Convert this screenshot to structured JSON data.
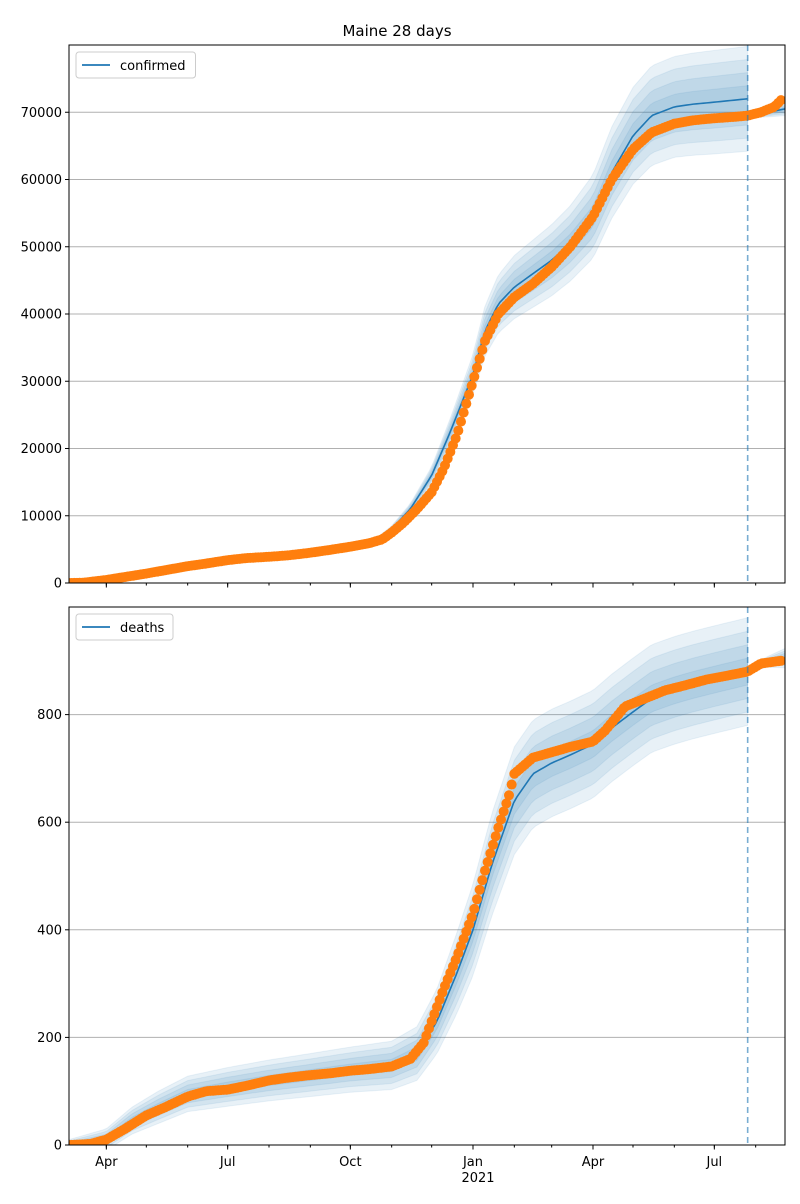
{
  "title": "Maine 28 days",
  "x_ticks": [
    {
      "label": "Apr",
      "date": "2020-04-01"
    },
    {
      "label": "Jul",
      "date": "2020-07-01"
    },
    {
      "label": "Oct",
      "date": "2020-10-01"
    },
    {
      "label": "Jan",
      "date": "2021-01-01"
    },
    {
      "label": "Apr",
      "date": "2021-04-01"
    },
    {
      "label": "Jul",
      "date": "2021-07-01"
    }
  ],
  "x_year_label": "2021",
  "colors": {
    "model": "#1f77b4",
    "observed": "#ff7f0e",
    "grid": "#b0b0b0"
  },
  "chart_data": [
    {
      "type": "line",
      "legend_label": "confirmed",
      "legend_position": "upper-left",
      "grid": true,
      "xlim": [
        "2020-03-04",
        "2021-08-23"
      ],
      "ylim": [
        0,
        80000
      ],
      "y_ticks": [
        0,
        10000,
        20000,
        30000,
        40000,
        50000,
        60000,
        70000
      ],
      "forecast_start": "2021-07-26",
      "model": {
        "x": [
          "2020-03-04",
          "2020-04-01",
          "2020-05-01",
          "2020-06-01",
          "2020-07-01",
          "2020-08-01",
          "2020-09-01",
          "2020-10-01",
          "2020-10-20",
          "2020-11-01",
          "2020-11-15",
          "2020-12-01",
          "2020-12-15",
          "2021-01-01",
          "2021-01-10",
          "2021-01-20",
          "2021-02-01",
          "2021-02-15",
          "2021-03-01",
          "2021-03-15",
          "2021-04-01",
          "2021-04-15",
          "2021-05-01",
          "2021-05-15",
          "2021-06-01",
          "2021-06-15",
          "2021-07-01",
          "2021-07-26"
        ],
        "mean": [
          0,
          400,
          1300,
          2500,
          3400,
          4000,
          4500,
          5400,
          6200,
          8000,
          11000,
          16000,
          22500,
          31000,
          37500,
          41500,
          44000,
          46000,
          48000,
          50500,
          54500,
          61000,
          66500,
          69500,
          70800,
          71200,
          71500,
          72000
        ],
        "band_spread": [
          0,
          50,
          100,
          150,
          200,
          250,
          300,
          350,
          400,
          500,
          800,
          1300,
          2000,
          3000,
          3700,
          4300,
          4700,
          5000,
          5300,
          5600,
          6200,
          6800,
          7200,
          7400,
          7500,
          7600,
          7700,
          7800
        ]
      },
      "model_tail": {
        "x": [
          "2021-07-26",
          "2021-08-10",
          "2021-08-23"
        ],
        "mean": [
          69500,
          70000,
          70500
        ],
        "band_spread": [
          300,
          700,
          1000
        ]
      },
      "observed": {
        "x": [
          "2020-03-04",
          "2020-03-15",
          "2020-04-01",
          "2020-04-15",
          "2020-05-01",
          "2020-05-15",
          "2020-06-01",
          "2020-06-15",
          "2020-07-01",
          "2020-07-15",
          "2020-08-01",
          "2020-08-15",
          "2020-09-01",
          "2020-09-15",
          "2020-10-01",
          "2020-10-15",
          "2020-10-25",
          "2020-11-01",
          "2020-11-10",
          "2020-11-20",
          "2020-12-01",
          "2020-12-10",
          "2020-12-20",
          "2021-01-01",
          "2021-01-10",
          "2021-01-20",
          "2021-02-01",
          "2021-02-15",
          "2021-03-01",
          "2021-03-15",
          "2021-04-01",
          "2021-04-15",
          "2021-05-01",
          "2021-05-15",
          "2021-06-01",
          "2021-06-15",
          "2021-07-01",
          "2021-07-15",
          "2021-07-26",
          "2021-08-05",
          "2021-08-15",
          "2021-08-20"
        ],
        "y": [
          0,
          50,
          450,
          900,
          1400,
          1900,
          2500,
          2900,
          3400,
          3700,
          3900,
          4100,
          4500,
          4900,
          5400,
          5900,
          6500,
          7500,
          9000,
          11000,
          13500,
          17000,
          22000,
          30000,
          36000,
          40000,
          42500,
          44500,
          47000,
          50000,
          54500,
          60000,
          64500,
          67000,
          68300,
          68800,
          69100,
          69300,
          69500,
          70000,
          70800,
          71800
        ]
      }
    },
    {
      "type": "line",
      "legend_label": "deaths",
      "legend_position": "upper-left",
      "grid": true,
      "xlim": [
        "2020-03-04",
        "2021-08-23"
      ],
      "ylim": [
        0,
        1000
      ],
      "y_ticks": [
        0,
        200,
        400,
        600,
        800
      ],
      "forecast_start": "2021-07-26",
      "model": {
        "x": [
          "2020-03-04",
          "2020-04-01",
          "2020-04-20",
          "2020-05-10",
          "2020-06-01",
          "2020-07-01",
          "2020-08-01",
          "2020-09-01",
          "2020-10-01",
          "2020-11-01",
          "2020-11-20",
          "2020-12-05",
          "2020-12-20",
          "2021-01-01",
          "2021-01-15",
          "2021-02-01",
          "2021-02-15",
          "2021-03-01",
          "2021-03-15",
          "2021-04-01",
          "2021-04-15",
          "2021-05-01",
          "2021-05-15",
          "2021-06-01",
          "2021-06-15",
          "2021-07-01",
          "2021-07-26"
        ],
        "mean": [
          0,
          10,
          45,
          70,
          95,
          108,
          120,
          130,
          140,
          148,
          170,
          230,
          320,
          400,
          520,
          640,
          690,
          710,
          725,
          745,
          775,
          805,
          830,
          845,
          855,
          865,
          880
        ],
        "band_spread": [
          10,
          20,
          25,
          30,
          33,
          36,
          38,
          40,
          42,
          45,
          50,
          60,
          75,
          85,
          95,
          100,
          100,
          100,
          100,
          100,
          100,
          100,
          100,
          100,
          100,
          100,
          100
        ]
      },
      "model_tail": {
        "x": [
          "2021-07-26",
          "2021-08-10",
          "2021-08-23"
        ],
        "mean": [
          885,
          898,
          905
        ],
        "band_spread": [
          5,
          10,
          18
        ]
      },
      "observed": {
        "x": [
          "2020-03-04",
          "2020-03-20",
          "2020-04-01",
          "2020-04-15",
          "2020-05-01",
          "2020-05-15",
          "2020-06-01",
          "2020-06-15",
          "2020-07-01",
          "2020-07-15",
          "2020-08-01",
          "2020-08-15",
          "2020-09-01",
          "2020-09-15",
          "2020-10-01",
          "2020-10-15",
          "2020-11-01",
          "2020-11-15",
          "2020-11-25",
          "2020-12-01",
          "2020-12-10",
          "2020-12-20",
          "2021-01-01",
          "2021-01-10",
          "2021-01-20",
          "2021-01-28",
          "2021-02-01",
          "2021-02-15",
          "2021-03-01",
          "2021-03-15",
          "2021-04-01",
          "2021-04-10",
          "2021-04-25",
          "2021-05-10",
          "2021-05-25",
          "2021-06-10",
          "2021-06-25",
          "2021-07-10",
          "2021-07-26",
          "2021-08-05",
          "2021-08-20"
        ],
        "y": [
          0,
          2,
          10,
          30,
          55,
          70,
          90,
          100,
          103,
          110,
          120,
          125,
          130,
          133,
          138,
          141,
          146,
          160,
          190,
          230,
          290,
          350,
          430,
          510,
          590,
          650,
          690,
          720,
          730,
          740,
          750,
          770,
          815,
          830,
          845,
          855,
          865,
          872,
          880,
          895,
          900
        ]
      }
    }
  ]
}
